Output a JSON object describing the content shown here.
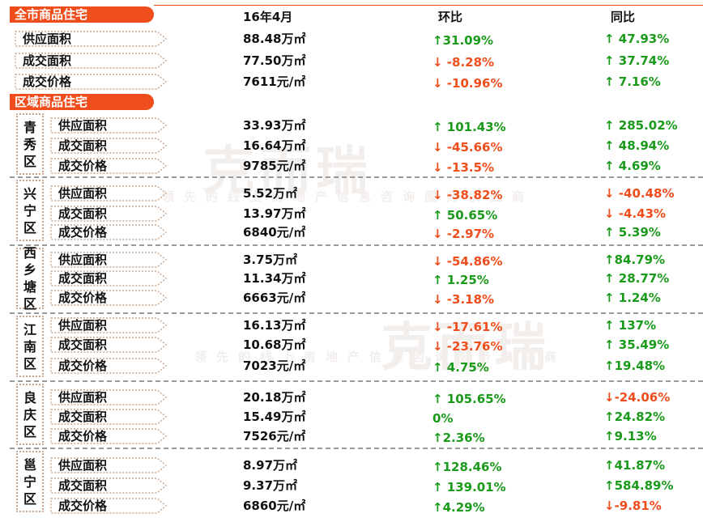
{
  "watermark": {
    "brand": "克而瑞",
    "slogan": "领先的线上房地产信息咨询服务供应商"
  },
  "header": {
    "period": "16年4月",
    "mom": "环比",
    "yoy": "同比"
  },
  "city": {
    "title": "全市商品住宅",
    "rows": [
      {
        "label": "供应面积",
        "value": "88.48万㎡",
        "mom": "↑31.09%",
        "mom_dir": "up",
        "yoy": "↑ 47.93%",
        "yoy_dir": "up"
      },
      {
        "label": "成交面积",
        "value": "77.50万㎡",
        "mom": "↓ -8.28%",
        "mom_dir": "down",
        "yoy": "↑ 37.74%",
        "yoy_dir": "up"
      },
      {
        "label": "成交价格",
        "value": "7611元/㎡",
        "mom": "↓ -10.96%",
        "mom_dir": "down",
        "yoy": "↑ 7.16%",
        "yoy_dir": "up"
      }
    ]
  },
  "district_title": "区域商品住宅",
  "districts": [
    {
      "name": "青秀区",
      "rows": [
        {
          "label": "供应面积",
          "value": "33.93万㎡",
          "mom": "↑ 101.43%",
          "mom_dir": "up",
          "yoy": "↑ 285.02%",
          "yoy_dir": "up"
        },
        {
          "label": "成交面积",
          "value": "16.64万㎡",
          "mom": "↓ -45.66%",
          "mom_dir": "down",
          "yoy": "↑ 48.94%",
          "yoy_dir": "up"
        },
        {
          "label": "成交价格",
          "value": "9785元/㎡",
          "mom": "↓ -13.5%",
          "mom_dir": "down",
          "yoy": "↑ 4.69%",
          "yoy_dir": "up"
        }
      ]
    },
    {
      "name": "兴宁区",
      "rows": [
        {
          "label": "供应面积",
          "value": "5.52万㎡",
          "mom": "↓ -38.82%",
          "mom_dir": "down",
          "yoy": "↓ -40.48%",
          "yoy_dir": "down"
        },
        {
          "label": "成交面积",
          "value": "13.97万㎡",
          "mom": "↑ 50.65%",
          "mom_dir": "up",
          "yoy": "↓ -4.43%",
          "yoy_dir": "down"
        },
        {
          "label": "成交价格",
          "value": "6840元/㎡",
          "mom": "↓ -2.97%",
          "mom_dir": "down",
          "yoy": "↑ 5.39%",
          "yoy_dir": "up"
        }
      ]
    },
    {
      "name": "西乡塘区",
      "rows": [
        {
          "label": "供应面积",
          "value": "3.75万㎡",
          "mom": "↓ -54.86%",
          "mom_dir": "down",
          "yoy": "↑84.79%",
          "yoy_dir": "up"
        },
        {
          "label": "成交面积",
          "value": "11.34万㎡",
          "mom": "↑ 1.25%",
          "mom_dir": "up",
          "yoy": "↑ 28.77%",
          "yoy_dir": "up"
        },
        {
          "label": "成交价格",
          "value": "6663元/㎡",
          "mom": "↓ -3.18%",
          "mom_dir": "down",
          "yoy": "↑ 1.24%",
          "yoy_dir": "up"
        }
      ]
    },
    {
      "name": "江南区",
      "rows": [
        {
          "label": "供应面积",
          "value": "16.13万㎡",
          "mom": "↓ -17.61%",
          "mom_dir": "down",
          "yoy": "↑ 137%",
          "yoy_dir": "up"
        },
        {
          "label": "成交面积",
          "value": "10.68万㎡",
          "mom": "↓ -23.76%",
          "mom_dir": "down",
          "yoy": "↑ 35.49%",
          "yoy_dir": "up"
        },
        {
          "label": "成交价格",
          "value": "7023元/㎡",
          "mom": "↑ 4.75%",
          "mom_dir": "up",
          "yoy": "↑19.48%",
          "yoy_dir": "up"
        }
      ]
    },
    {
      "name": "良庆区",
      "rows": [
        {
          "label": "供应面积",
          "value": "20.18万㎡",
          "mom": "↑ 105.65%",
          "mom_dir": "up",
          "yoy": "↓-24.06%",
          "yoy_dir": "down"
        },
        {
          "label": "成交面积",
          "value": "15.49万㎡",
          "mom": "0%",
          "mom_dir": "flat",
          "yoy": "↑24.82%",
          "yoy_dir": "up"
        },
        {
          "label": "成交价格",
          "value": "7526元/㎡",
          "mom": "↑2.36%",
          "mom_dir": "up",
          "yoy": "↑9.13%",
          "yoy_dir": "up"
        }
      ]
    },
    {
      "name": "邕宁区",
      "rows": [
        {
          "label": "供应面积",
          "value": "8.97万㎡",
          "mom": "↑128.46%",
          "mom_dir": "up",
          "yoy": "↑41.87%",
          "yoy_dir": "up"
        },
        {
          "label": "成交面积",
          "value": "9.37万㎡",
          "mom": "↑ 139.01%",
          "mom_dir": "up",
          "yoy": "↑584.89%",
          "yoy_dir": "up"
        },
        {
          "label": "成交价格",
          "value": "6860元/㎡",
          "mom": "↑4.29%",
          "mom_dir": "up",
          "yoy": "↓-9.81%",
          "yoy_dir": "down"
        }
      ]
    }
  ],
  "colors": {
    "accent": "#ef4e1c",
    "up": "#1a9a1a",
    "down": "#ef4e1c",
    "dotted_border": "#c6a58c"
  }
}
